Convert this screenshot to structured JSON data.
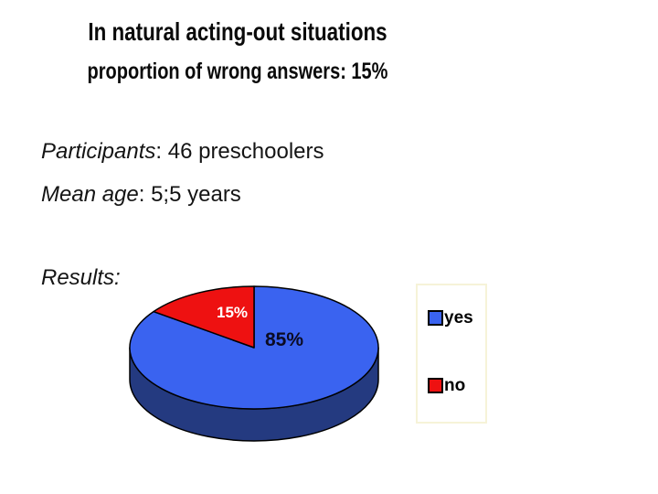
{
  "slide": {
    "title_line1": "In natural acting-out situations",
    "title_line2": "proportion of wrong answers: 15%",
    "participants_label": "Participants",
    "participants_rest": ": 46 preschoolers",
    "mean_age_label": "Mean age",
    "mean_age_rest": ": 5;5 years",
    "results_label": "Results:"
  },
  "chart_data": {
    "type": "pie",
    "style": "3d",
    "labels": [
      "yes",
      "no"
    ],
    "values": [
      85,
      15
    ],
    "slice_labels": [
      "85%",
      "15%"
    ],
    "colors": [
      "#3a63f0",
      "#ee1111"
    ],
    "side_color": "#243a80",
    "start_angle_deg": 90,
    "direction": "clockwise",
    "legend_position": "right"
  },
  "legend": {
    "items": [
      {
        "label": "yes",
        "color": "#3a63f0"
      },
      {
        "label": "no",
        "color": "#ee1111"
      }
    ]
  }
}
